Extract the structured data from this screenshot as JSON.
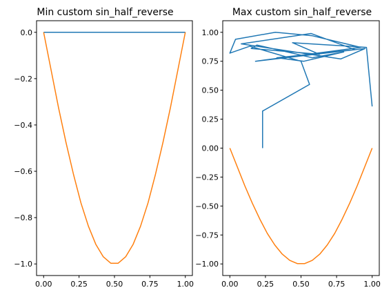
{
  "chart_data": [
    {
      "type": "line",
      "title": "Min custom sin_half_reverse",
      "xlabel": "",
      "ylabel": "",
      "xlim": [
        -0.05,
        1.05
      ],
      "ylim": [
        -1.05,
        0.05
      ],
      "xticks": [
        0.0,
        0.25,
        0.5,
        0.75,
        1.0
      ],
      "xtick_labels": [
        "0.00",
        "0.25",
        "0.50",
        "0.75",
        "1.00"
      ],
      "yticks": [
        0.0,
        -0.2,
        -0.4,
        -0.6,
        -0.8,
        -1.0
      ],
      "ytick_labels": [
        "0.0",
        "−0.2",
        "−0.4",
        "−0.6",
        "−0.8",
        "−1.0"
      ],
      "grid": false,
      "series": [
        {
          "color": "#1f77b4",
          "x": [
            0.0,
            1.0
          ],
          "y": [
            0.0,
            0.0
          ]
        },
        {
          "color": "#ff7f0e",
          "x": [
            0.0,
            0.053,
            0.105,
            0.158,
            0.211,
            0.263,
            0.316,
            0.368,
            0.421,
            0.474,
            0.526,
            0.579,
            0.632,
            0.684,
            0.737,
            0.789,
            0.842,
            0.895,
            0.947,
            1.0
          ],
          "y": [
            0.0,
            -0.164,
            -0.325,
            -0.476,
            -0.614,
            -0.736,
            -0.837,
            -0.915,
            -0.969,
            -0.997,
            -0.997,
            -0.969,
            -0.915,
            -0.837,
            -0.736,
            -0.614,
            -0.476,
            -0.325,
            -0.164,
            0.0
          ]
        }
      ]
    },
    {
      "type": "line",
      "title": "Max custom sin_half_reverse",
      "xlabel": "",
      "ylabel": "",
      "xlim": [
        -0.05,
        1.05
      ],
      "ylim": [
        -1.1,
        1.1
      ],
      "xticks": [
        0.0,
        0.25,
        0.5,
        0.75,
        1.0
      ],
      "xtick_labels": [
        "0.00",
        "0.25",
        "0.50",
        "0.75",
        "1.00"
      ],
      "yticks": [
        1.0,
        0.75,
        0.5,
        0.25,
        0.0,
        -0.25,
        -0.5,
        -0.75,
        -1.0
      ],
      "ytick_labels": [
        "1.00",
        "0.75",
        "0.50",
        "0.25",
        "0.00",
        "−0.25",
        "−0.50",
        "−0.75",
        "−1.00"
      ],
      "grid": false,
      "series": [
        {
          "color": "#1f77b4",
          "x": [
            0.23,
            0.23,
            0.56,
            0.5,
            0.14,
            0.0,
            0.04,
            0.32,
            0.58,
            0.92,
            0.18,
            0.95,
            0.78,
            0.08,
            0.57,
            0.88,
            0.33,
            0.52,
            0.8,
            0.58,
            0.19,
            0.15,
            0.63,
            0.44,
            0.96,
            1.0
          ],
          "y": [
            0.0,
            0.32,
            0.55,
            0.75,
            0.88,
            0.82,
            0.94,
            1.0,
            0.97,
            0.87,
            0.75,
            0.86,
            0.77,
            0.9,
            0.99,
            0.85,
            0.78,
            0.75,
            0.83,
            0.78,
            0.89,
            0.86,
            0.81,
            0.91,
            0.87,
            0.36
          ]
        },
        {
          "color": "#ff7f0e",
          "x": [
            0.0,
            0.053,
            0.105,
            0.158,
            0.211,
            0.263,
            0.316,
            0.368,
            0.421,
            0.474,
            0.526,
            0.579,
            0.632,
            0.684,
            0.737,
            0.789,
            0.842,
            0.895,
            0.947,
            1.0
          ],
          "y": [
            0.0,
            -0.164,
            -0.325,
            -0.476,
            -0.614,
            -0.736,
            -0.837,
            -0.915,
            -0.969,
            -0.997,
            -0.997,
            -0.969,
            -0.915,
            -0.837,
            -0.736,
            -0.614,
            -0.476,
            -0.325,
            -0.164,
            0.0
          ]
        }
      ]
    }
  ]
}
